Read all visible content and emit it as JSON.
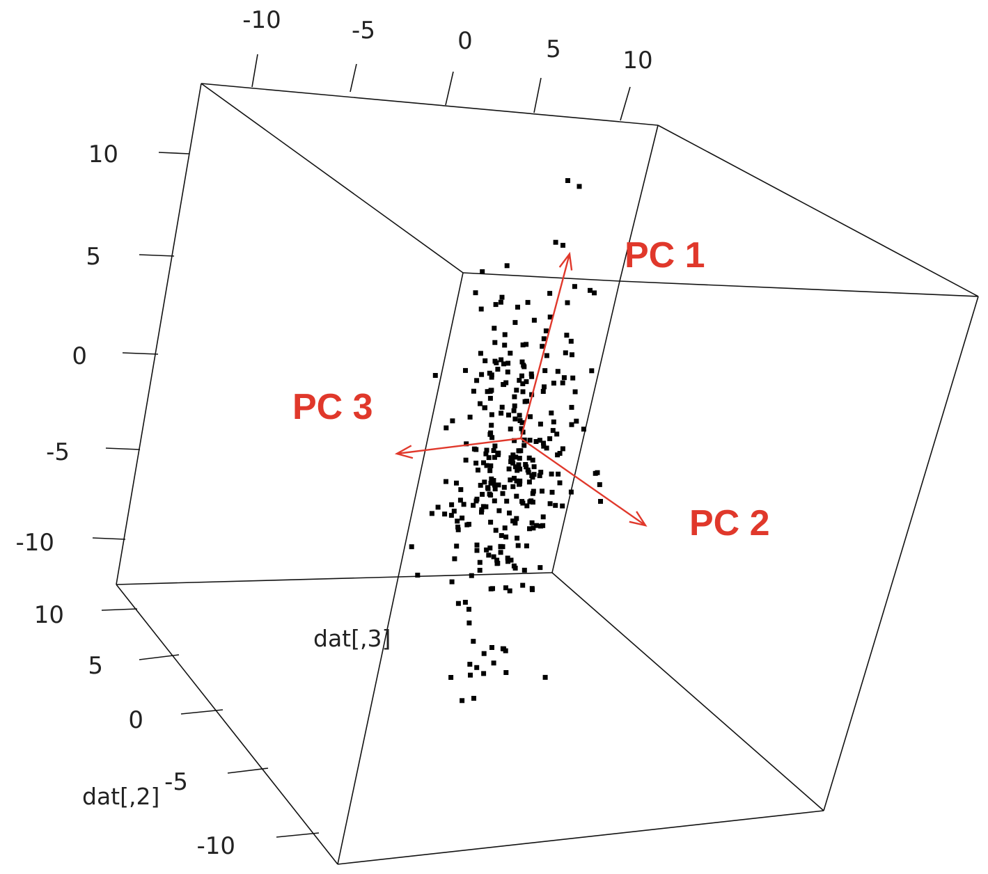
{
  "chart_data": {
    "type": "scatter",
    "dimensions": "3d",
    "axes": {
      "top": {
        "ticks": [
          "-10",
          "-5",
          "0",
          "5",
          "10"
        ]
      },
      "left_upper": {
        "ticks": [
          "10",
          "5",
          "0",
          "-5",
          "-10"
        ]
      },
      "left_lower": {
        "label": "dat[,2]",
        "ticks": [
          "10",
          "5",
          "0",
          "-5",
          "-10"
        ]
      },
      "depth": {
        "label": "dat[,3]"
      }
    },
    "principal_components": [
      {
        "name": "PC 1",
        "color": "#e0382b"
      },
      {
        "name": "PC 2",
        "color": "#e0382b"
      },
      {
        "name": "PC 3",
        "color": "#e0382b"
      }
    ],
    "point_count": 320,
    "point_color": "#000000",
    "box_color": "#111111"
  }
}
